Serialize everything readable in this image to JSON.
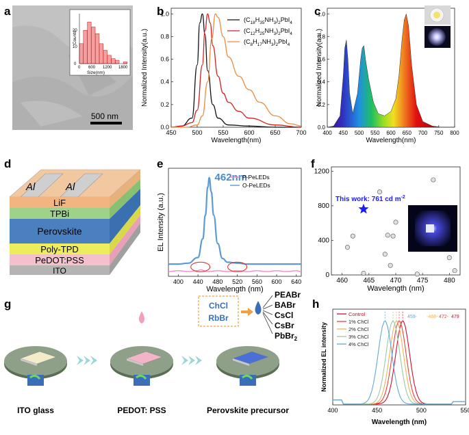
{
  "panel_letters": {
    "a": "a",
    "b": "b",
    "c": "c",
    "d": "d",
    "e": "e",
    "f": "f",
    "g": "g",
    "h": "h"
  },
  "colors": {
    "black_line": "#111111",
    "red_line": "#d61e1e",
    "orange_line": "#f08a3c",
    "pink_line": "#f08cc0",
    "blue_line": "#5b9bd5",
    "star": "#1a1aff",
    "control": "#c8102e",
    "chcl1": "#e7423d",
    "chcl2": "#f0b35a",
    "chcl3": "#9cc9a0",
    "chcl4": "#5fa8d8"
  },
  "panel_a": {
    "scale_bar_label": "500 nm",
    "inset": {
      "ylabel": "Counts",
      "xlabel": "Size(nm)",
      "xticks": [
        "0",
        "600",
        "1200",
        "1800"
      ],
      "yticks": [
        "0",
        "10",
        "20"
      ]
    }
  },
  "panel_d": {
    "layers": [
      {
        "name": "Al",
        "label": "Al"
      },
      {
        "name": "LiF",
        "label": "LiF"
      },
      {
        "name": "TPBi",
        "label": "TPBi"
      },
      {
        "name": "Perovskite",
        "label": "Perovskite"
      },
      {
        "name": "Poly-TPD",
        "label": "Poly-TPD"
      },
      {
        "name": "PeDOT:PSS",
        "label": "PeDOT:PSS"
      },
      {
        "name": "ITO",
        "label": "ITO"
      }
    ],
    "electrode_labels": [
      "Al",
      "Al"
    ]
  },
  "panel_g": {
    "steps": [
      "ITO glass",
      "PEDOT: PSS",
      "Perovskite precursor"
    ],
    "additives_box": [
      "ChCl",
      "RbBr"
    ],
    "precursors": [
      "PEABr",
      "BABr",
      "CsCl",
      "CsBr",
      "PbBr2"
    ]
  },
  "chart_data": [
    {
      "panel": "a",
      "type": "bar",
      "title": "",
      "xlabel": "Size(nm)",
      "ylabel": "Counts",
      "categories": [
        "0-150",
        "150-300",
        "300-450",
        "450-600",
        "600-750",
        "750-900",
        "900-1050",
        "1050-1200",
        "1200-1350",
        "1350-1500",
        "1500-1650",
        "1650-1800"
      ],
      "values": [
        12,
        20,
        25,
        22,
        18,
        12,
        8,
        5,
        3,
        2,
        0,
        1
      ],
      "ylim": [
        0,
        30
      ],
      "xlim": [
        0,
        1800
      ]
    },
    {
      "panel": "b",
      "type": "line",
      "title": "",
      "xlabel": "Wavelength(nm)",
      "ylabel": "Normalized Intensity(a.u.)",
      "xlim": [
        450,
        700
      ],
      "ylim": [
        0,
        1.05
      ],
      "xticks": [
        450,
        500,
        550,
        600,
        650,
        700
      ],
      "yticks": [
        0.0,
        0.2,
        0.4,
        0.6,
        0.8,
        1.0
      ],
      "series": [
        {
          "name": "(C18H35NH3)2PbI4",
          "legend_base": "(C",
          "legend_sub1": "18",
          "legend_mid": "H",
          "legend_sub2": "35",
          "legend_tail": "NH",
          "legend_sub3": "3",
          "legend_end": ")",
          "legend_sub4": "2",
          "legend_final": "PbI",
          "legend_sub5": "4",
          "x": [
            450,
            470,
            490,
            500,
            505,
            510,
            515,
            520,
            530,
            540,
            560,
            600,
            650,
            700
          ],
          "values": [
            0.0,
            0.01,
            0.08,
            0.55,
            0.92,
            1.0,
            0.82,
            0.5,
            0.2,
            0.08,
            0.02,
            0.01,
            0.0,
            0.0
          ]
        },
        {
          "name": "(C12H25NH3)2PbI4",
          "legend_base": "(C",
          "legend_sub1": "12",
          "legend_mid": "H",
          "legend_sub2": "25",
          "legend_tail": "NH",
          "legend_sub3": "3",
          "legend_end": ")",
          "legend_sub4": "2",
          "legend_final": "PbI",
          "legend_sub5": "4",
          "x": [
            450,
            470,
            490,
            500,
            510,
            515,
            520,
            525,
            530,
            540,
            550,
            560,
            580,
            600,
            650,
            700
          ],
          "values": [
            0.0,
            0.01,
            0.04,
            0.15,
            0.55,
            0.85,
            1.0,
            0.92,
            0.72,
            0.45,
            0.3,
            0.22,
            0.14,
            0.08,
            0.02,
            0.0
          ]
        },
        {
          "name": "(C8H17NH3)2PbI4",
          "legend_base": "(C",
          "legend_sub1": "8",
          "legend_mid": "H",
          "legend_sub2": "17",
          "legend_tail": "NH",
          "legend_sub3": "3",
          "legend_end": ")",
          "legend_sub4": "2",
          "legend_final": "PbI",
          "legend_sub5": "4",
          "x": [
            450,
            480,
            500,
            510,
            520,
            528,
            535,
            540,
            550,
            560,
            580,
            600,
            620,
            650,
            680,
            700
          ],
          "values": [
            0.0,
            0.0,
            0.02,
            0.1,
            0.4,
            0.78,
            1.0,
            0.97,
            0.8,
            0.62,
            0.45,
            0.33,
            0.22,
            0.1,
            0.03,
            0.01
          ]
        }
      ]
    },
    {
      "panel": "c",
      "type": "area",
      "title": "",
      "xlabel": "Wavelength(nm)",
      "ylabel": "Normalized Intensity(a.u.)",
      "xlim": [
        400,
        800
      ],
      "ylim": [
        0,
        1.05
      ],
      "xticks": [
        400,
        450,
        500,
        550,
        600,
        650,
        700,
        750,
        800
      ],
      "yticks": [
        0.0,
        0.2,
        0.4,
        0.6,
        0.8,
        1.0
      ],
      "x": [
        400,
        420,
        440,
        450,
        455,
        460,
        465,
        470,
        480,
        495,
        505,
        510,
        515,
        520,
        530,
        545,
        560,
        580,
        600,
        615,
        625,
        635,
        642,
        648,
        655,
        665,
        680,
        700,
        730,
        760,
        800
      ],
      "values": [
        0.0,
        0.01,
        0.1,
        0.45,
        0.7,
        0.77,
        0.6,
        0.3,
        0.12,
        0.3,
        0.6,
        0.7,
        0.72,
        0.6,
        0.42,
        0.22,
        0.12,
        0.1,
        0.14,
        0.25,
        0.45,
        0.78,
        0.95,
        1.0,
        0.9,
        0.55,
        0.2,
        0.05,
        0.01,
        0.0,
        0.0
      ]
    },
    {
      "panel": "e",
      "type": "line",
      "title": "",
      "xlabel": "Wavelength (nm)",
      "ylabel": "EL Intensity (a.u.)",
      "annotation": "462nm",
      "xlim": [
        380,
        650
      ],
      "xticks": [
        400,
        440,
        480,
        520,
        560,
        600,
        640
      ],
      "series": [
        {
          "name": "P-PeLEDs",
          "x": [
            380,
            400,
            420,
            440,
            445,
            460,
            480,
            500,
            520,
            540,
            560,
            580,
            600,
            620,
            640,
            650
          ],
          "values": [
            0.05,
            0.06,
            0.05,
            0.06,
            0.07,
            0.05,
            0.06,
            0.05,
            0.06,
            0.05,
            0.06,
            0.05,
            0.06,
            0.05,
            0.06,
            0.05
          ]
        },
        {
          "name": "O-PeLEDs",
          "x": [
            380,
            400,
            420,
            440,
            450,
            455,
            460,
            463,
            467,
            472,
            480,
            490,
            500,
            520,
            540,
            560,
            600,
            650
          ],
          "values": [
            0.08,
            0.08,
            0.09,
            0.15,
            0.35,
            0.6,
            0.9,
            1.0,
            0.85,
            0.6,
            0.3,
            0.14,
            0.1,
            0.09,
            0.08,
            0.08,
            0.08,
            0.08
          ]
        }
      ]
    },
    {
      "panel": "f",
      "type": "scatter",
      "title": "",
      "xlabel": "Wavelength (nm)",
      "ylabel": "",
      "xlim": [
        458,
        482
      ],
      "ylim": [
        0,
        1250
      ],
      "xticks": [
        460,
        465,
        470,
        475,
        480
      ],
      "yticks": [
        0,
        400,
        800,
        1200
      ],
      "annotation": "This work: 761 cd m",
      "annotation_sup": "-2",
      "highlight": {
        "x": 464,
        "y": 761
      },
      "points": [
        [
          461,
          320
        ],
        [
          462,
          450
        ],
        [
          464,
          20
        ],
        [
          467,
          960
        ],
        [
          468,
          240
        ],
        [
          468.5,
          460
        ],
        [
          469,
          110
        ],
        [
          469.5,
          450
        ],
        [
          470,
          610
        ],
        [
          474,
          10
        ],
        [
          477,
          1100
        ],
        [
          480,
          200
        ],
        [
          481,
          50
        ]
      ]
    },
    {
      "panel": "h",
      "type": "line",
      "title": "",
      "xlabel": "Wavelength (nm)",
      "ylabel": "Normalized EL intensity",
      "xlim": [
        400,
        550
      ],
      "xticks": [
        400,
        450,
        500,
        550
      ],
      "peak_labels": [
        "459-",
        "-468-",
        "472-",
        "479"
      ],
      "series": [
        {
          "name": "Control",
          "peak": 479
        },
        {
          "name": "1% ChCl",
          "peak": 475
        },
        {
          "name": "2% ChCl",
          "peak": 472
        },
        {
          "name": "3% ChCl",
          "peak": 468
        },
        {
          "name": "4% ChCl",
          "peak": 459
        }
      ]
    }
  ]
}
